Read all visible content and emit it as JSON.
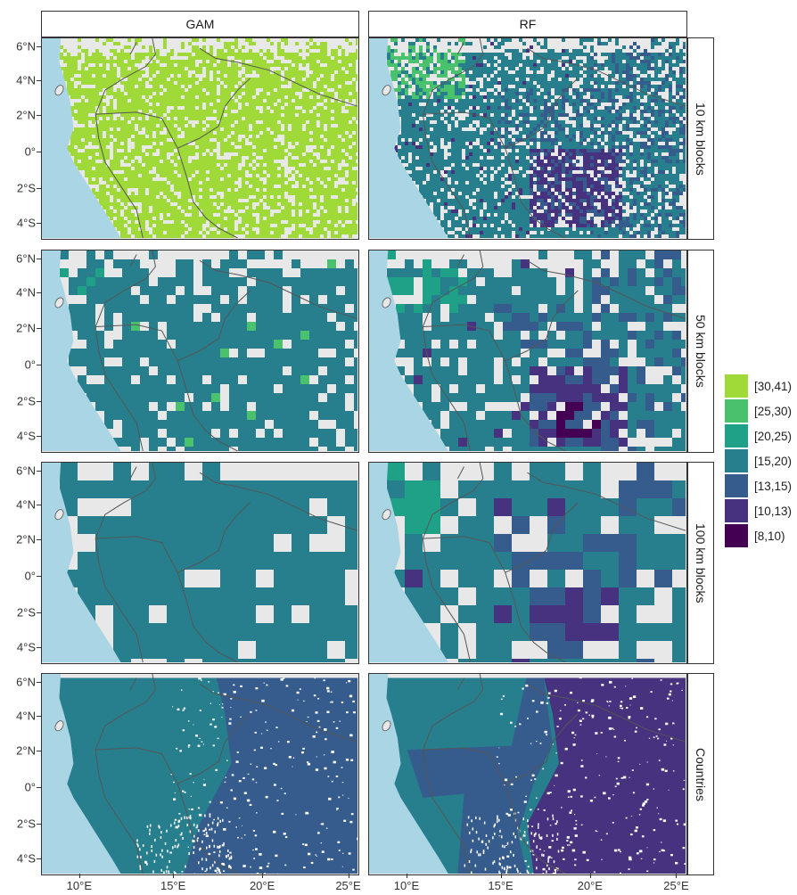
{
  "columns": [
    {
      "key": "gam",
      "label": "GAM"
    },
    {
      "key": "rf",
      "label": "RF"
    }
  ],
  "rows": [
    {
      "key": "b10",
      "label": "10 km blocks"
    },
    {
      "key": "b50",
      "label": "50 km blocks"
    },
    {
      "key": "b100",
      "label": "100 km blocks"
    },
    {
      "key": "countries",
      "label": "Countries"
    }
  ],
  "y_axis_labels": [
    "6°N",
    "4°N",
    "2°N",
    "0°",
    "2°S",
    "4°S"
  ],
  "x_axis_labels": [
    "10°E",
    "15°E",
    "20°E",
    "25°E"
  ],
  "legend": [
    {
      "label": "[30,41)",
      "color": "#a0da39"
    },
    {
      "label": "[25,30)",
      "color": "#4ac16d"
    },
    {
      "label": "[20,25)",
      "color": "#1fa187"
    },
    {
      "label": "[15,20)",
      "color": "#277f8e"
    },
    {
      "label": "[13,15)",
      "color": "#365c8d"
    },
    {
      "label": "[10,13)",
      "color": "#46327e"
    },
    {
      "label": "[8,10)",
      "color": "#440154"
    }
  ],
  "map_colors": {
    "land": "#e8e8e8",
    "ocean": "#a9d5e4",
    "border": "#555555"
  },
  "panel_fill": {
    "gam": {
      "b10": "[30,41)",
      "b50": "[15,20)",
      "b100": "[15,20)",
      "countries": "[15,20) / [13,15)"
    },
    "rf": {
      "b10": "[15,20)",
      "b50": "[15,20)",
      "b100": "[15,20)",
      "countries": "[15,20) / [13,15) / [10,13)"
    }
  }
}
